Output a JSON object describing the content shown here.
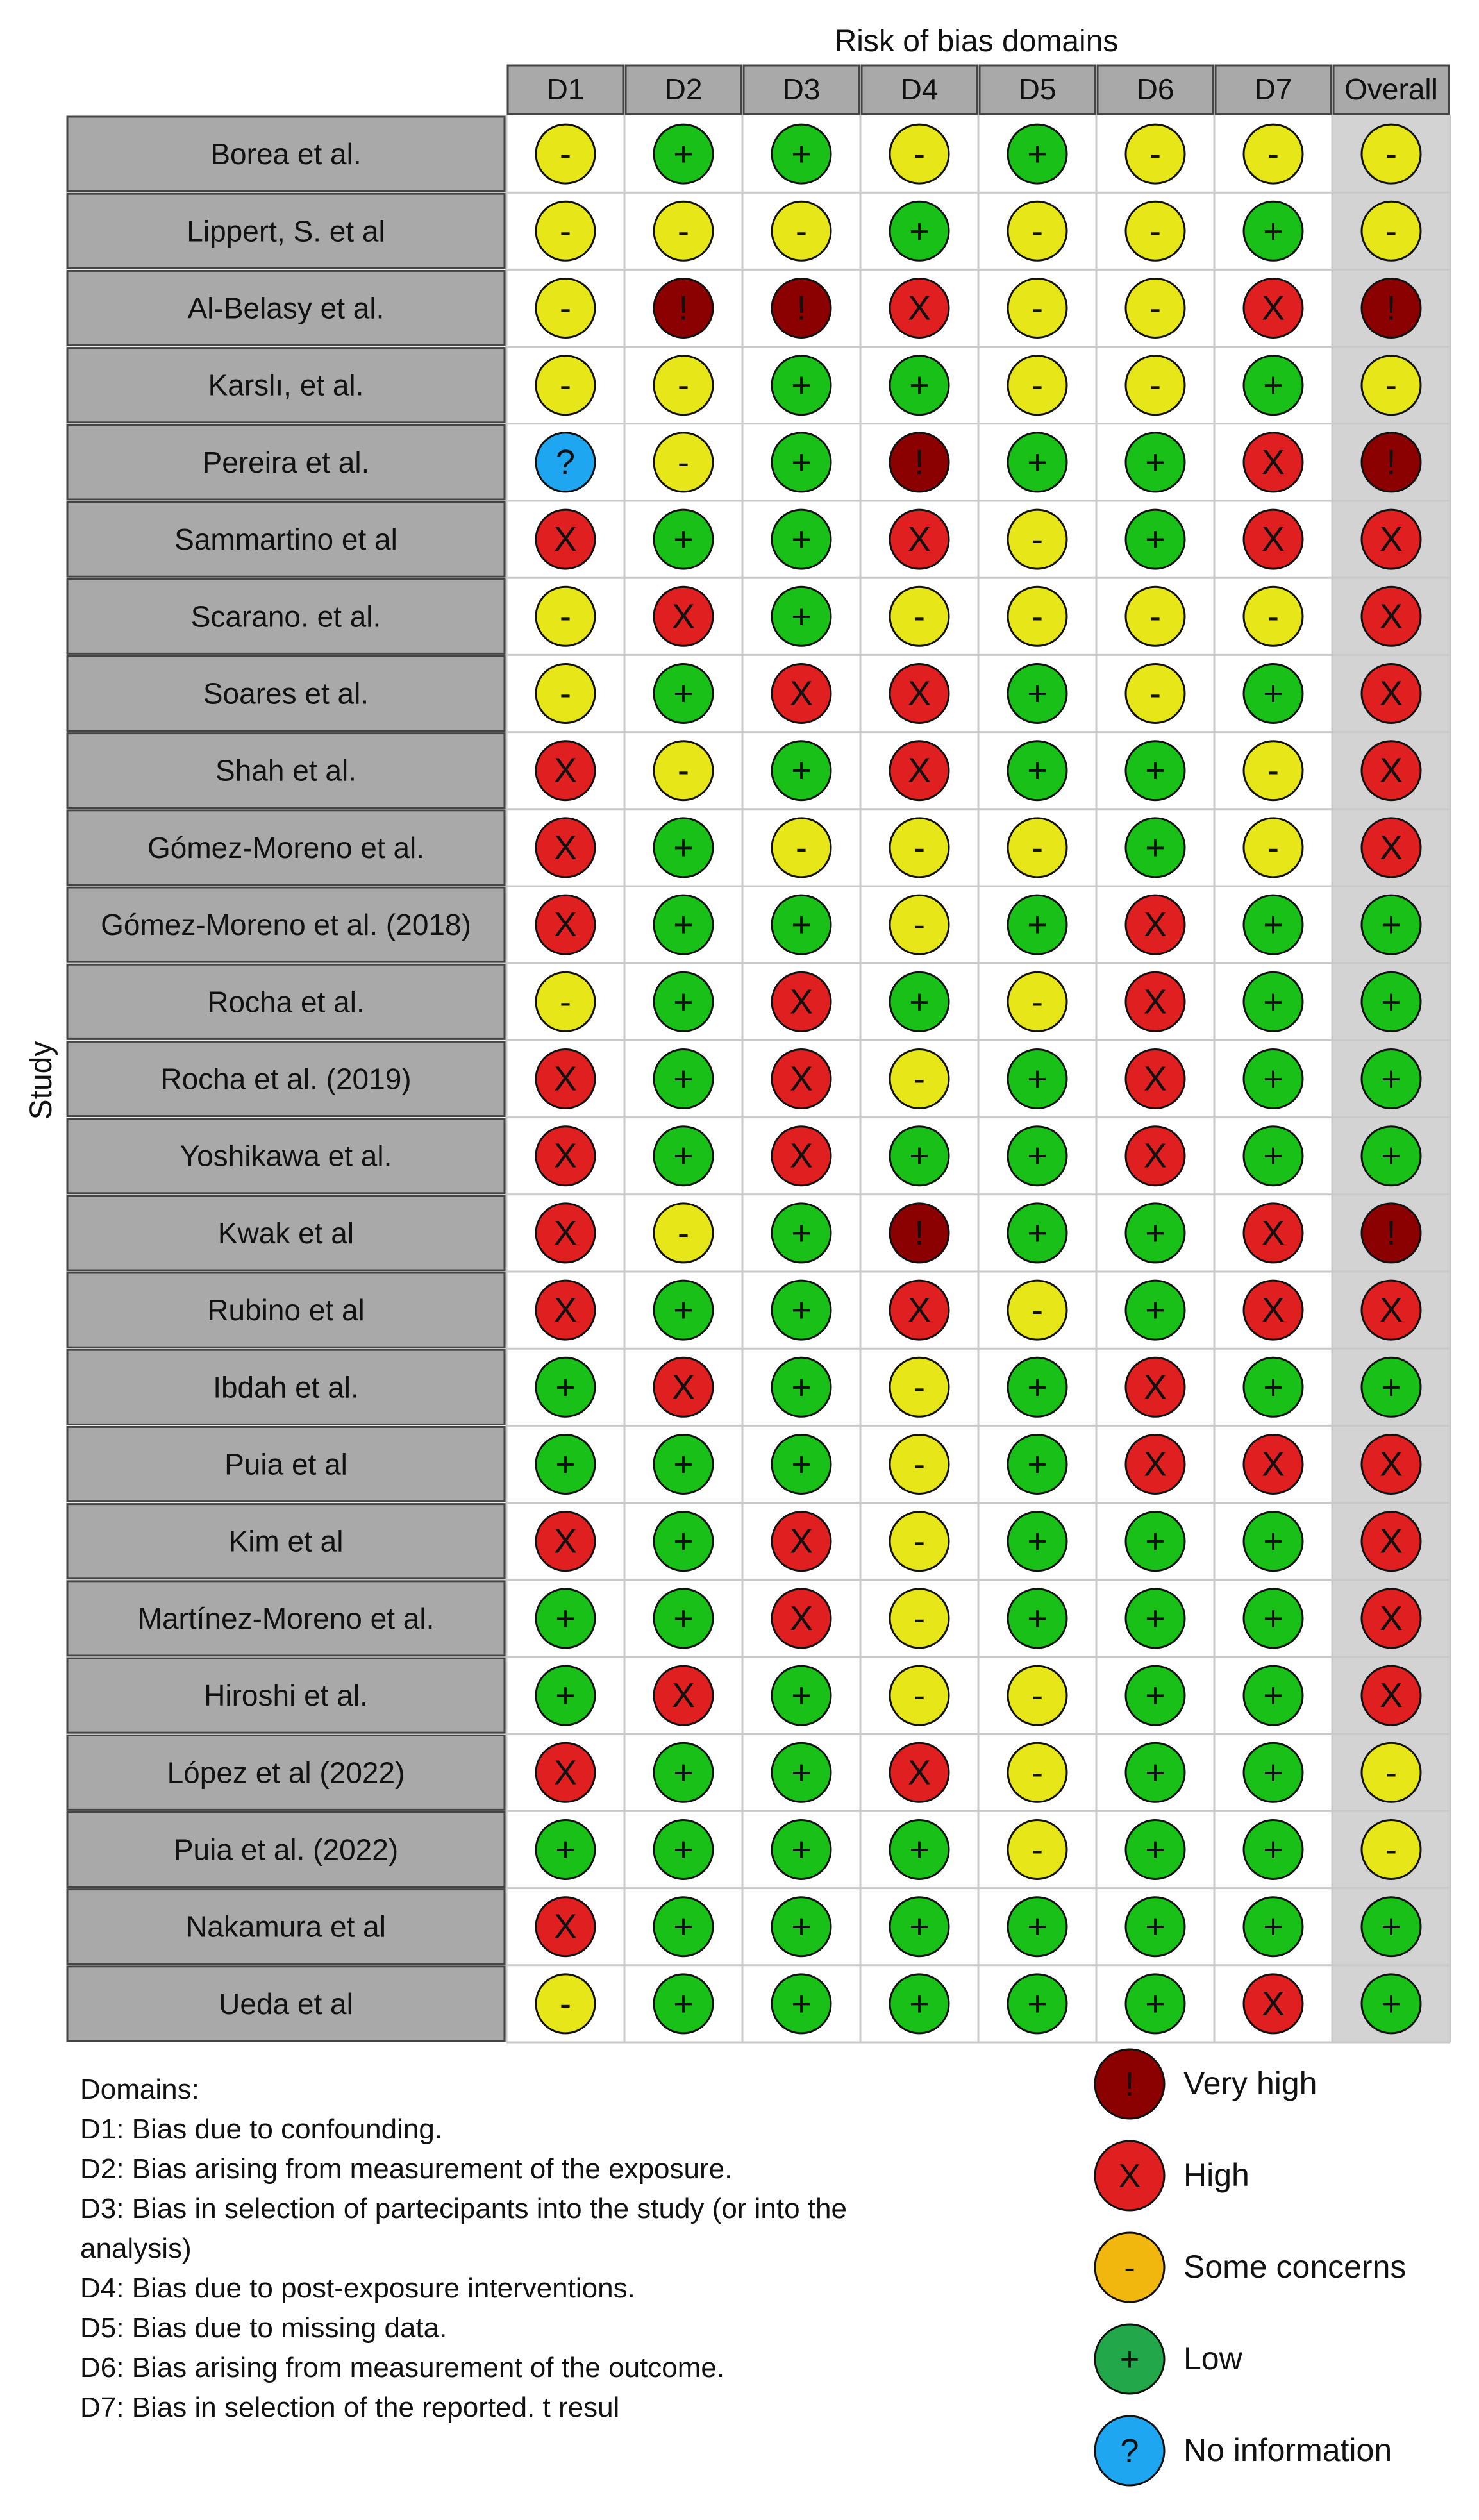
{
  "chart_data": {
    "type": "table",
    "title": "Risk of bias domains",
    "ylabel": "Study",
    "columns": [
      "D1",
      "D2",
      "D3",
      "D4",
      "D5",
      "D6",
      "D7",
      "Overall"
    ],
    "rows": [
      {
        "study": "Borea et al.",
        "judgements": [
          "some",
          "low",
          "low",
          "some",
          "low",
          "some",
          "some",
          "some"
        ]
      },
      {
        "study": "Lippert, S. et al",
        "judgements": [
          "some",
          "some",
          "some",
          "low",
          "some",
          "some",
          "low",
          "some"
        ]
      },
      {
        "study": "Al-Belasy et al.",
        "judgements": [
          "some",
          "very_high",
          "very_high",
          "high",
          "some",
          "some",
          "high",
          "very_high"
        ]
      },
      {
        "study": "Karslı, et al.",
        "judgements": [
          "some",
          "some",
          "low",
          "low",
          "some",
          "some",
          "low",
          "some"
        ]
      },
      {
        "study": "Pereira et al.",
        "judgements": [
          "no_info",
          "some",
          "low",
          "very_high",
          "low",
          "low",
          "high",
          "very_high"
        ]
      },
      {
        "study": "Sammartino et al",
        "judgements": [
          "high",
          "low",
          "low",
          "high",
          "some",
          "low",
          "high",
          "high"
        ]
      },
      {
        "study": "Scarano. et al.",
        "judgements": [
          "some",
          "high",
          "low",
          "some",
          "some",
          "some",
          "some",
          "high"
        ]
      },
      {
        "study": "Soares et al.",
        "judgements": [
          "some",
          "low",
          "high",
          "high",
          "low",
          "some",
          "low",
          "high"
        ]
      },
      {
        "study": "Shah et al.",
        "judgements": [
          "high",
          "some",
          "low",
          "high",
          "low",
          "low",
          "some",
          "high"
        ]
      },
      {
        "study": "Gómez-Moreno et al.",
        "judgements": [
          "high",
          "low",
          "some",
          "some",
          "some",
          "low",
          "some",
          "high"
        ]
      },
      {
        "study": "Gómez-Moreno et al. (2018)",
        "judgements": [
          "high",
          "low",
          "low",
          "some",
          "low",
          "high",
          "low",
          "low"
        ]
      },
      {
        "study": "Rocha et al.",
        "judgements": [
          "some",
          "low",
          "high",
          "low",
          "some",
          "high",
          "low",
          "low"
        ]
      },
      {
        "study": "Rocha et al. (2019)",
        "judgements": [
          "high",
          "low",
          "high",
          "some",
          "low",
          "high",
          "low",
          "low"
        ]
      },
      {
        "study": "Yoshikawa et al.",
        "judgements": [
          "high",
          "low",
          "high",
          "low",
          "low",
          "high",
          "low",
          "low"
        ]
      },
      {
        "study": "Kwak et al",
        "judgements": [
          "high",
          "some",
          "low",
          "very_high",
          "low",
          "low",
          "high",
          "very_high"
        ]
      },
      {
        "study": "Rubino et al",
        "judgements": [
          "high",
          "low",
          "low",
          "high",
          "some",
          "low",
          "high",
          "high"
        ]
      },
      {
        "study": "Ibdah et al.",
        "judgements": [
          "low",
          "high",
          "low",
          "some",
          "low",
          "high",
          "low",
          "low"
        ]
      },
      {
        "study": "Puia et al",
        "judgements": [
          "low",
          "low",
          "low",
          "some",
          "low",
          "high",
          "high",
          "high"
        ]
      },
      {
        "study": "Kim et al",
        "judgements": [
          "high",
          "low",
          "high",
          "some",
          "low",
          "low",
          "low",
          "high"
        ]
      },
      {
        "study": "Martínez-Moreno et al.",
        "judgements": [
          "low",
          "low",
          "high",
          "some",
          "low",
          "low",
          "low",
          "high"
        ]
      },
      {
        "study": "Hiroshi et al.",
        "judgements": [
          "low",
          "high",
          "low",
          "some",
          "some",
          "low",
          "low",
          "high"
        ]
      },
      {
        "study": "López et al (2022)",
        "judgements": [
          "high",
          "low",
          "low",
          "high",
          "some",
          "low",
          "low",
          "some"
        ]
      },
      {
        "study": "Puia et al. (2022)",
        "judgements": [
          "low",
          "low",
          "low",
          "low",
          "some",
          "low",
          "low",
          "some"
        ]
      },
      {
        "study": "Nakamura et al",
        "judgements": [
          "high",
          "low",
          "low",
          "low",
          "low",
          "low",
          "low",
          "low"
        ]
      },
      {
        "study": "Ueda et al",
        "judgements": [
          "some",
          "low",
          "low",
          "low",
          "low",
          "low",
          "high",
          "low"
        ]
      }
    ],
    "judgement_styles": {
      "very_high": {
        "color": "#8b0000",
        "symbol": "!",
        "icon": "exclamation-icon"
      },
      "high": {
        "color": "#e02020",
        "symbol": "X",
        "icon": "cross-icon"
      },
      "some": {
        "color": "#e6e619",
        "symbol": "-",
        "icon": "minus-icon"
      },
      "low": {
        "color": "#18c018",
        "symbol": "+",
        "icon": "plus-icon"
      },
      "no_info": {
        "color": "#1ea7f0",
        "symbol": "?",
        "icon": "question-icon"
      }
    },
    "legend": [
      {
        "key": "very_high",
        "label": "Very high",
        "color": "#8b0000",
        "symbol": "!"
      },
      {
        "key": "high",
        "label": "High",
        "color": "#e02020",
        "symbol": "X"
      },
      {
        "key": "some",
        "label": "Some concerns",
        "color": "#f2b70f",
        "symbol": "-"
      },
      {
        "key": "low",
        "label": "Low",
        "color": "#22a84a",
        "symbol": "+"
      },
      {
        "key": "no_info",
        "label": "No information",
        "color": "#1ea7f0",
        "symbol": "?"
      }
    ],
    "legend_placement": "bottom-right",
    "domain_key": {
      "heading": "Domains:",
      "items": [
        "D1: Bias due to confounding.",
        "D2: Bias arising from measurement of the exposure.",
        "D3: Bias in selection of partecipants into the study (or into the",
        "analysis)",
        "D4: Bias due to post-exposure interventions.",
        "D5: Bias due to missing data.",
        "D6: Bias arising from measurement of the outcome.",
        "D7: Bias in selection of the reported. t resul"
      ]
    }
  }
}
